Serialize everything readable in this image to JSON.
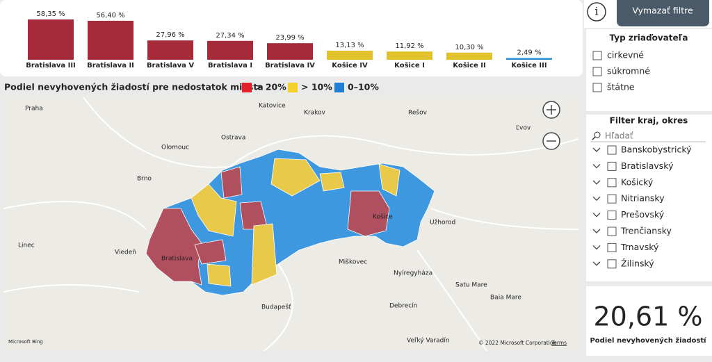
{
  "chart_data": {
    "type": "bar",
    "categories": [
      "Bratislava III",
      "Bratislava II",
      "Bratislava V",
      "Bratislava I",
      "Bratislava IV",
      "Košice IV",
      "Košice I",
      "Košice II",
      "Košice III"
    ],
    "values": [
      58.35,
      56.4,
      27.96,
      27.34,
      23.99,
      13.13,
      11.92,
      10.3,
      2.49
    ],
    "value_labels": [
      "58,35 %",
      "56,40 %",
      "27,96 %",
      "27,34 %",
      "23,99 %",
      "13,13 %",
      "11,92 %",
      "10,30 %",
      "2,49 %"
    ],
    "colors": [
      "#a52a3a",
      "#a52a3a",
      "#a52a3a",
      "#a52a3a",
      "#a52a3a",
      "#e2c22b",
      "#e2c22b",
      "#e2c22b",
      "#2b8fd6"
    ]
  },
  "map": {
    "legend_title": "Podiel nevyhovených žiadostí pre nedostatok miesta",
    "legend": [
      {
        "label": "> 20%",
        "color": "#e3212d"
      },
      {
        "label": "> 10%",
        "color": "#f2d12f"
      },
      {
        "label": "0–10%",
        "color": "#1f7fd6"
      }
    ],
    "labels": [
      "Praha",
      "Brno",
      "Olomouc",
      "Ostrava",
      "Krakov",
      "Rešov",
      "Ľvov",
      "Linec",
      "Viedeň",
      "Bratislava",
      "Košice",
      "Užhorod",
      "Miškovec",
      "Nyíregyháza",
      "Budapešť",
      "Debrecín",
      "Satu Mare",
      "Baia Mare",
      "Veľký Varadín",
      "Katovice"
    ],
    "copyright": "© 2022 Microsoft Corporation",
    "terms": "Terms",
    "provider": "Microsoft Bing"
  },
  "toolbar": {
    "info": "i",
    "clear_filters": "Vymazať filtre"
  },
  "slicer_type": {
    "title": "Typ zriaďovateľa",
    "options": [
      "cirkevné",
      "súkromné",
      "štátne"
    ]
  },
  "slicer_region": {
    "title": "Filter kraj, okres",
    "search": "Hľadať",
    "options": [
      "Banskobystrický",
      "Bratislavský",
      "Košický",
      "Nitriansky",
      "Prešovský",
      "Trenčiansky",
      "Trnavský",
      "Žilinský"
    ]
  },
  "kpi": {
    "value": "20,61 %",
    "label": "Podiel nevyhovených žiadostí"
  }
}
